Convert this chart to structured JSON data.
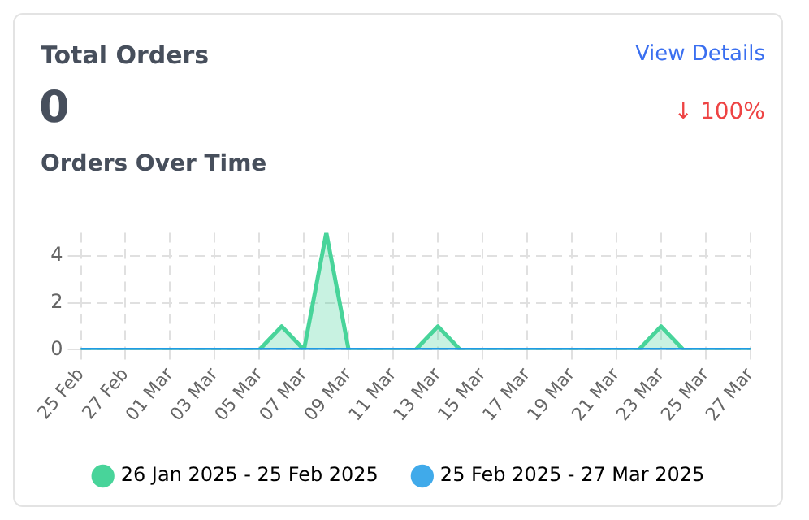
{
  "chart_data": {
    "type": "line",
    "title": "Orders Over Time",
    "annotations": [
      "Total Orders",
      "0",
      "↓ 100%",
      "View Details"
    ],
    "categories": [
      "25 Feb",
      null,
      "27 Feb",
      null,
      "01 Mar",
      null,
      "03 Mar",
      null,
      "05 Mar",
      null,
      "07 Mar",
      null,
      "09 Mar",
      null,
      "11 Mar",
      null,
      "13 Mar",
      null,
      "15 Mar",
      null,
      "17 Mar",
      null,
      "19 Mar",
      null,
      "21 Mar",
      null,
      "23 Mar",
      null,
      "25 Mar",
      null,
      "27 Mar"
    ],
    "series": [
      {
        "name": "26 Jan 2025 - 25 Feb 2025",
        "type": "area",
        "color": "#48d49a",
        "values": [
          0,
          0,
          0,
          0,
          0,
          0,
          0,
          0,
          0,
          1,
          0,
          5,
          0,
          0,
          0,
          0,
          1,
          0,
          0,
          0,
          0,
          0,
          0,
          0,
          0,
          0,
          1,
          0,
          0,
          0,
          0
        ]
      },
      {
        "name": "25 Feb 2025 - 27 Mar 2025",
        "type": "line",
        "color": "#1e9be6",
        "values": [
          0,
          0,
          0,
          0,
          0,
          0,
          0,
          0,
          0,
          0,
          0,
          0,
          0,
          0,
          0,
          0,
          0,
          0,
          0,
          0,
          0,
          0,
          0,
          0,
          0,
          0,
          0,
          0,
          0,
          0,
          0
        ]
      }
    ],
    "ylim": [
      0,
      5
    ],
    "yticks": [
      0,
      2,
      4
    ],
    "grid": true,
    "legend": "bottom",
    "marker": "none"
  }
}
